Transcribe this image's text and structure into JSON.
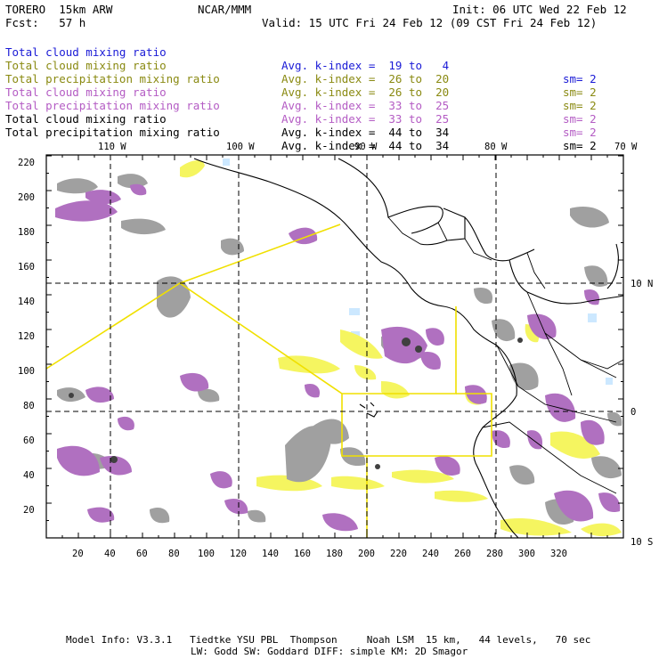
{
  "header": {
    "model": "TORERO  15km ARW",
    "org": "NCAR/MMM",
    "init": "Init: 06 UTC Wed 22 Feb 12",
    "fcst": "Fcst:   57 h",
    "valid": "Valid: 15 UTC Fri 24 Feb 12 (09 CST Fri 24 Feb 12)"
  },
  "legend": [
    {
      "field": "Total cloud mixing ratio",
      "kindex": "Avg. k-index =  19 to   4",
      "sm": "sm= 2",
      "color": "#1a1ad6"
    },
    {
      "field": "Total cloud mixing ratio",
      "kindex": "Avg. k-index =  26 to  20",
      "sm": "sm= 2",
      "color": "#8a8a12"
    },
    {
      "field": "Total precipitation mixing ratio",
      "kindex": "Avg. k-index =  26 to  20",
      "sm": "sm= 2",
      "color": "#8a8a12"
    },
    {
      "field": "Total cloud mixing ratio",
      "kindex": "Avg. k-index =  33 to  25",
      "sm": "sm= 2",
      "color": "#b45cc4"
    },
    {
      "field": "Total precipitation mixing ratio",
      "kindex": "Avg. k-index =  33 to  25",
      "sm": "sm= 2",
      "color": "#b45cc4"
    },
    {
      "field": "Total cloud mixing ratio",
      "kindex": "Avg. k-index =  44 to  34",
      "sm": "sm= 2",
      "color": "#000000"
    },
    {
      "field": "Total precipitation mixing ratio",
      "kindex": "Avg. k-index =  44 to  34",
      "sm": "sm= 2",
      "color": "#000000"
    }
  ],
  "map": {
    "top_lon_labels": [
      "110 W",
      "100 W",
      "90 W",
      "80 W",
      "70 W"
    ],
    "right_lat_labels": [
      "10 N",
      "0",
      "10 S"
    ],
    "x_ticks": [
      "20",
      "40",
      "60",
      "80",
      "100",
      "120",
      "140",
      "160",
      "180",
      "200",
      "220",
      "240",
      "260",
      "280",
      "300",
      "320"
    ],
    "y_ticks": [
      "20",
      "40",
      "60",
      "80",
      "100",
      "120",
      "140",
      "160",
      "180",
      "200",
      "220"
    ],
    "colors": {
      "gray": "#a0a0a0",
      "purple": "#b070c0",
      "yellow": "#f5f560",
      "cyan": "#cce8ff",
      "dark": "#404040",
      "track": "#f0e000",
      "coast": "#000000"
    }
  },
  "footer": {
    "line1": "Model Info: V3.3.1   Tiedtke YSU PBL  Thompson     Noah LSM  15 km,   44 levels,   70 sec",
    "line2": "LW: Godd SW: Goddard DIFF: simple KM: 2D Smagor"
  }
}
